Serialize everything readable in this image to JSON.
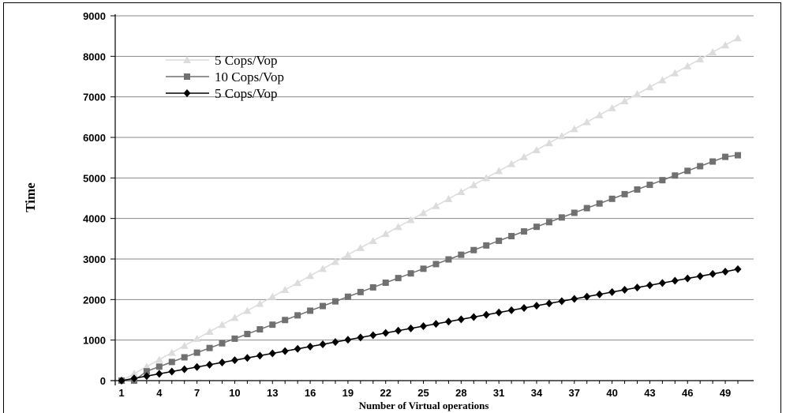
{
  "chart_data": {
    "type": "line",
    "title": "",
    "xlabel": "Number of Virtual operations",
    "ylabel": "Time",
    "ylim": [
      0,
      9000
    ],
    "yticks": [
      "0",
      "1000",
      "2000",
      "3000",
      "4000",
      "5000",
      "6000",
      "7000",
      "8000",
      "9000"
    ],
    "xlim": [
      1,
      50
    ],
    "xticks": [
      "1",
      "4",
      "7",
      "10",
      "13",
      "16",
      "19",
      "22",
      "25",
      "28",
      "31",
      "34",
      "37",
      "40",
      "43",
      "46",
      "49"
    ],
    "grid": "horizontal",
    "legend_position": "top-left",
    "series": [
      {
        "name": "5 Cops/Vop",
        "marker": "triangle",
        "color": "#dcdcdc",
        "start_x": 1,
        "values": [
          0,
          172,
          345,
          517,
          690,
          862,
          1034,
          1207,
          1379,
          1552,
          1724,
          1896,
          2069,
          2241,
          2414,
          2586,
          2758,
          2931,
          3103,
          3276,
          3448,
          3620,
          3793,
          3965,
          4138,
          4310,
          4482,
          4655,
          4827,
          5000,
          5172,
          5344,
          5517,
          5689,
          5862,
          6034,
          6206,
          6379,
          6551,
          6724,
          6896,
          7068,
          7241,
          7413,
          7586,
          7758,
          7930,
          8103,
          8275,
          8450
        ]
      },
      {
        "name": "10 Cops/Vop",
        "marker": "square",
        "color": "#707070",
        "start_x": 1,
        "values": [
          0,
          0,
          230,
          345,
          460,
          575,
          690,
          805,
          920,
          1035,
          1150,
          1265,
          1380,
          1495,
          1610,
          1725,
          1840,
          1955,
          2070,
          2185,
          2300,
          2415,
          2530,
          2645,
          2760,
          2875,
          2990,
          3105,
          3220,
          3335,
          3450,
          3565,
          3680,
          3795,
          3910,
          4025,
          4140,
          4255,
          4370,
          4485,
          4600,
          4715,
          4830,
          4945,
          5060,
          5175,
          5290,
          5405,
          5520,
          5560
        ]
      },
      {
        "name": "5 Cops/Vop",
        "marker": "diamond",
        "color": "#000000",
        "start_x": 1,
        "values": [
          0,
          56,
          112,
          168,
          224,
          280,
          336,
          392,
          448,
          504,
          560,
          616,
          672,
          728,
          784,
          840,
          896,
          952,
          1008,
          1064,
          1120,
          1176,
          1232,
          1288,
          1344,
          1400,
          1456,
          1512,
          1568,
          1624,
          1680,
          1736,
          1792,
          1848,
          1904,
          1960,
          2016,
          2072,
          2128,
          2184,
          2240,
          2296,
          2352,
          2408,
          2464,
          2520,
          2576,
          2632,
          2688,
          2750
        ]
      }
    ]
  }
}
